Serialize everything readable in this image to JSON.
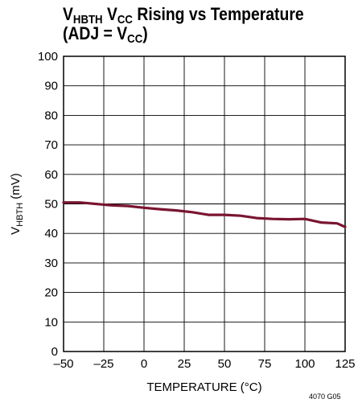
{
  "title": {
    "line1": {
      "v": "V",
      "v_sub": "HBTH",
      "mid": " V",
      "mid_sub": "CC",
      "rest": " Rising vs Temperature"
    },
    "line2": {
      "pre": "(ADJ = V",
      "sub": "CC",
      "post": ")"
    }
  },
  "figure_code": "4070 G05",
  "chart_data": {
    "type": "line",
    "title": "VHBTH VCC Rising vs Temperature (ADJ = VCC)",
    "xlabel": "TEMPERATURE (°C)",
    "ylabel": {
      "pre": "V",
      "sub": "HBTH",
      "post": " (mV)"
    },
    "xlim": [
      -50,
      125
    ],
    "ylim": [
      0,
      100
    ],
    "xticks": [
      -50,
      -25,
      0,
      25,
      50,
      75,
      100,
      125
    ],
    "xtick_labels": [
      "–50",
      "–25",
      "0",
      "25",
      "50",
      "75",
      "100",
      "125"
    ],
    "yticks": [
      0,
      10,
      20,
      30,
      40,
      50,
      60,
      70,
      80,
      90,
      100
    ],
    "grid": true,
    "line_color": "#7a1530",
    "series": [
      {
        "x": [
          -50,
          -40,
          -30,
          -20,
          -10,
          0,
          10,
          20,
          30,
          40,
          50,
          60,
          70,
          80,
          90,
          100,
          110,
          120,
          125
        ],
        "y": [
          50.5,
          50.5,
          50.0,
          49.5,
          49.3,
          48.7,
          48.2,
          47.8,
          47.2,
          46.3,
          46.3,
          46.0,
          45.2,
          44.9,
          44.8,
          44.9,
          43.7,
          43.4,
          42.2
        ]
      }
    ]
  }
}
